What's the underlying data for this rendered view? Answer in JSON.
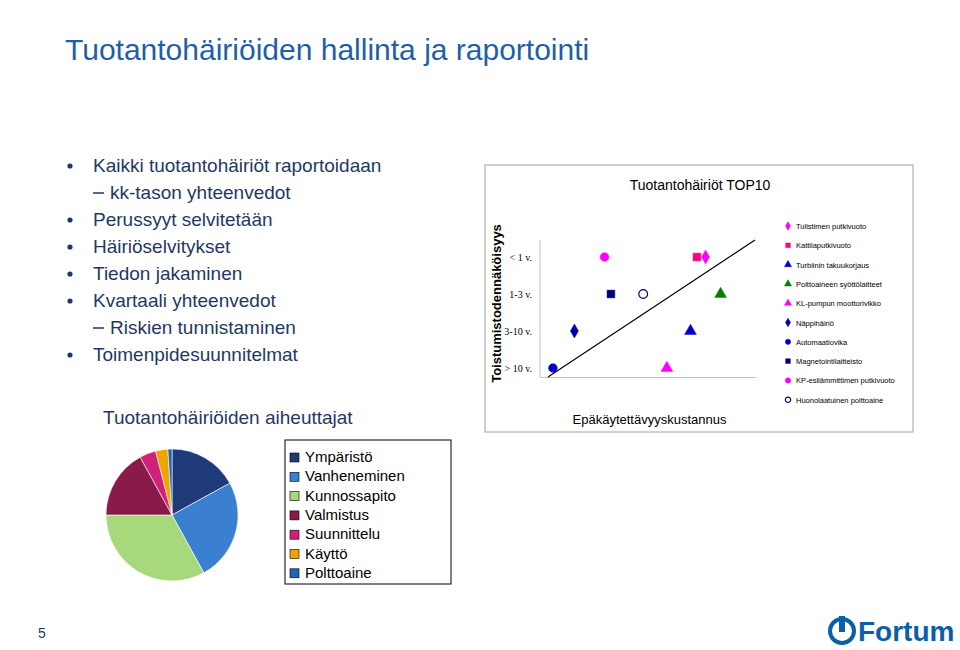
{
  "slide": {
    "title": "Tuotantohäiriöiden hallinta ja raportointi",
    "bullets": [
      {
        "text": "Kaikki tuotantohäiriöt raportoidaan",
        "level": 1
      },
      {
        "text": "kk-tason yhteenvedot",
        "level": 2
      },
      {
        "text": "Perussyyt selvitetään",
        "level": 1
      },
      {
        "text": "Häiriöselvitykset",
        "level": 1
      },
      {
        "text": "Tiedon jakaminen",
        "level": 1
      },
      {
        "text": "Kvartaali yhteenvedot",
        "level": 1
      },
      {
        "text": "Riskien tunnistaminen",
        "level": 2
      },
      {
        "text": "Toimenpidesuunnitelmat",
        "level": 1
      }
    ],
    "page_number": "5",
    "logo": "Fortum"
  },
  "chart_data": [
    {
      "type": "pie",
      "title": "Tuotantohäiriöiden aiheuttajat",
      "categories": [
        "Ympäristö",
        "Vanheneminen",
        "Kunnossapito",
        "Valmistus",
        "Suunnittelu",
        "Käyttö",
        "Polttoaine"
      ],
      "values": [
        17,
        25,
        33,
        17,
        4,
        3,
        1
      ],
      "colors": [
        "#1f3a78",
        "#3a7fd0",
        "#a8d87c",
        "#8a1a48",
        "#d0207a",
        "#f0a400",
        "#1f64b4"
      ],
      "legend": "right"
    },
    {
      "type": "scatter",
      "title": "Tuotantohäiriöt TOP10",
      "x_label": "Epäkäytettävyyskustannus",
      "y_label": "Toistumistodennäköisyys",
      "y_categories": [
        "< 1 v.",
        "1-3 v.",
        "3-10 v.",
        "> 10 v."
      ],
      "xlim": [
        0,
        100
      ],
      "tick_labels": "y",
      "legend": "right",
      "series": [
        {
          "name": "Tulistimen putkivuoto",
          "color": "#ff00ff",
          "marker": "diamond",
          "x": [
            77
          ],
          "values": [
            "< 1 v."
          ]
        },
        {
          "name": "Kattilaputkivuoto",
          "color": "#ff0080",
          "marker": "square",
          "x": [
            73
          ],
          "values": [
            "< 1 v."
          ]
        },
        {
          "name": "Turbiinin takuukorjaus",
          "color": "#0000cc",
          "marker": "triangle",
          "x": [
            70
          ],
          "values": [
            "3-10 v."
          ]
        },
        {
          "name": "Polttoaineen syöttölaitteet",
          "color": "#008000",
          "marker": "triangle",
          "x": [
            84
          ],
          "values": [
            "1-3 v."
          ]
        },
        {
          "name": "KL-pumpun moottorivikko",
          "color": "#ff00ff",
          "marker": "triangle",
          "x": [
            59
          ],
          "values": [
            "> 10 v."
          ]
        },
        {
          "name": "Näppihäiriö",
          "color": "#0000aa",
          "marker": "diamond",
          "x": [
            16
          ],
          "values": [
            "3-10 v."
          ]
        },
        {
          "name": "Automaatiovika",
          "color": "#0000cc",
          "marker": "circle",
          "x": [
            6
          ],
          "values": [
            "> 10 v."
          ]
        },
        {
          "name": "Magnetointilaitteisto",
          "color": "#000080",
          "marker": "square",
          "x": [
            33
          ],
          "values": [
            "1-3 v."
          ]
        },
        {
          "name": "KP-esilämmittimen putkivuoto",
          "color": "#ff00ff",
          "marker": "circle",
          "x": [
            30
          ],
          "values": [
            "< 1 v."
          ]
        },
        {
          "name": "Huonolaatuinen polttoaine",
          "color": "#000080",
          "marker": "circle-open",
          "x": [
            48
          ],
          "values": [
            "1-3 v."
          ]
        }
      ]
    }
  ]
}
